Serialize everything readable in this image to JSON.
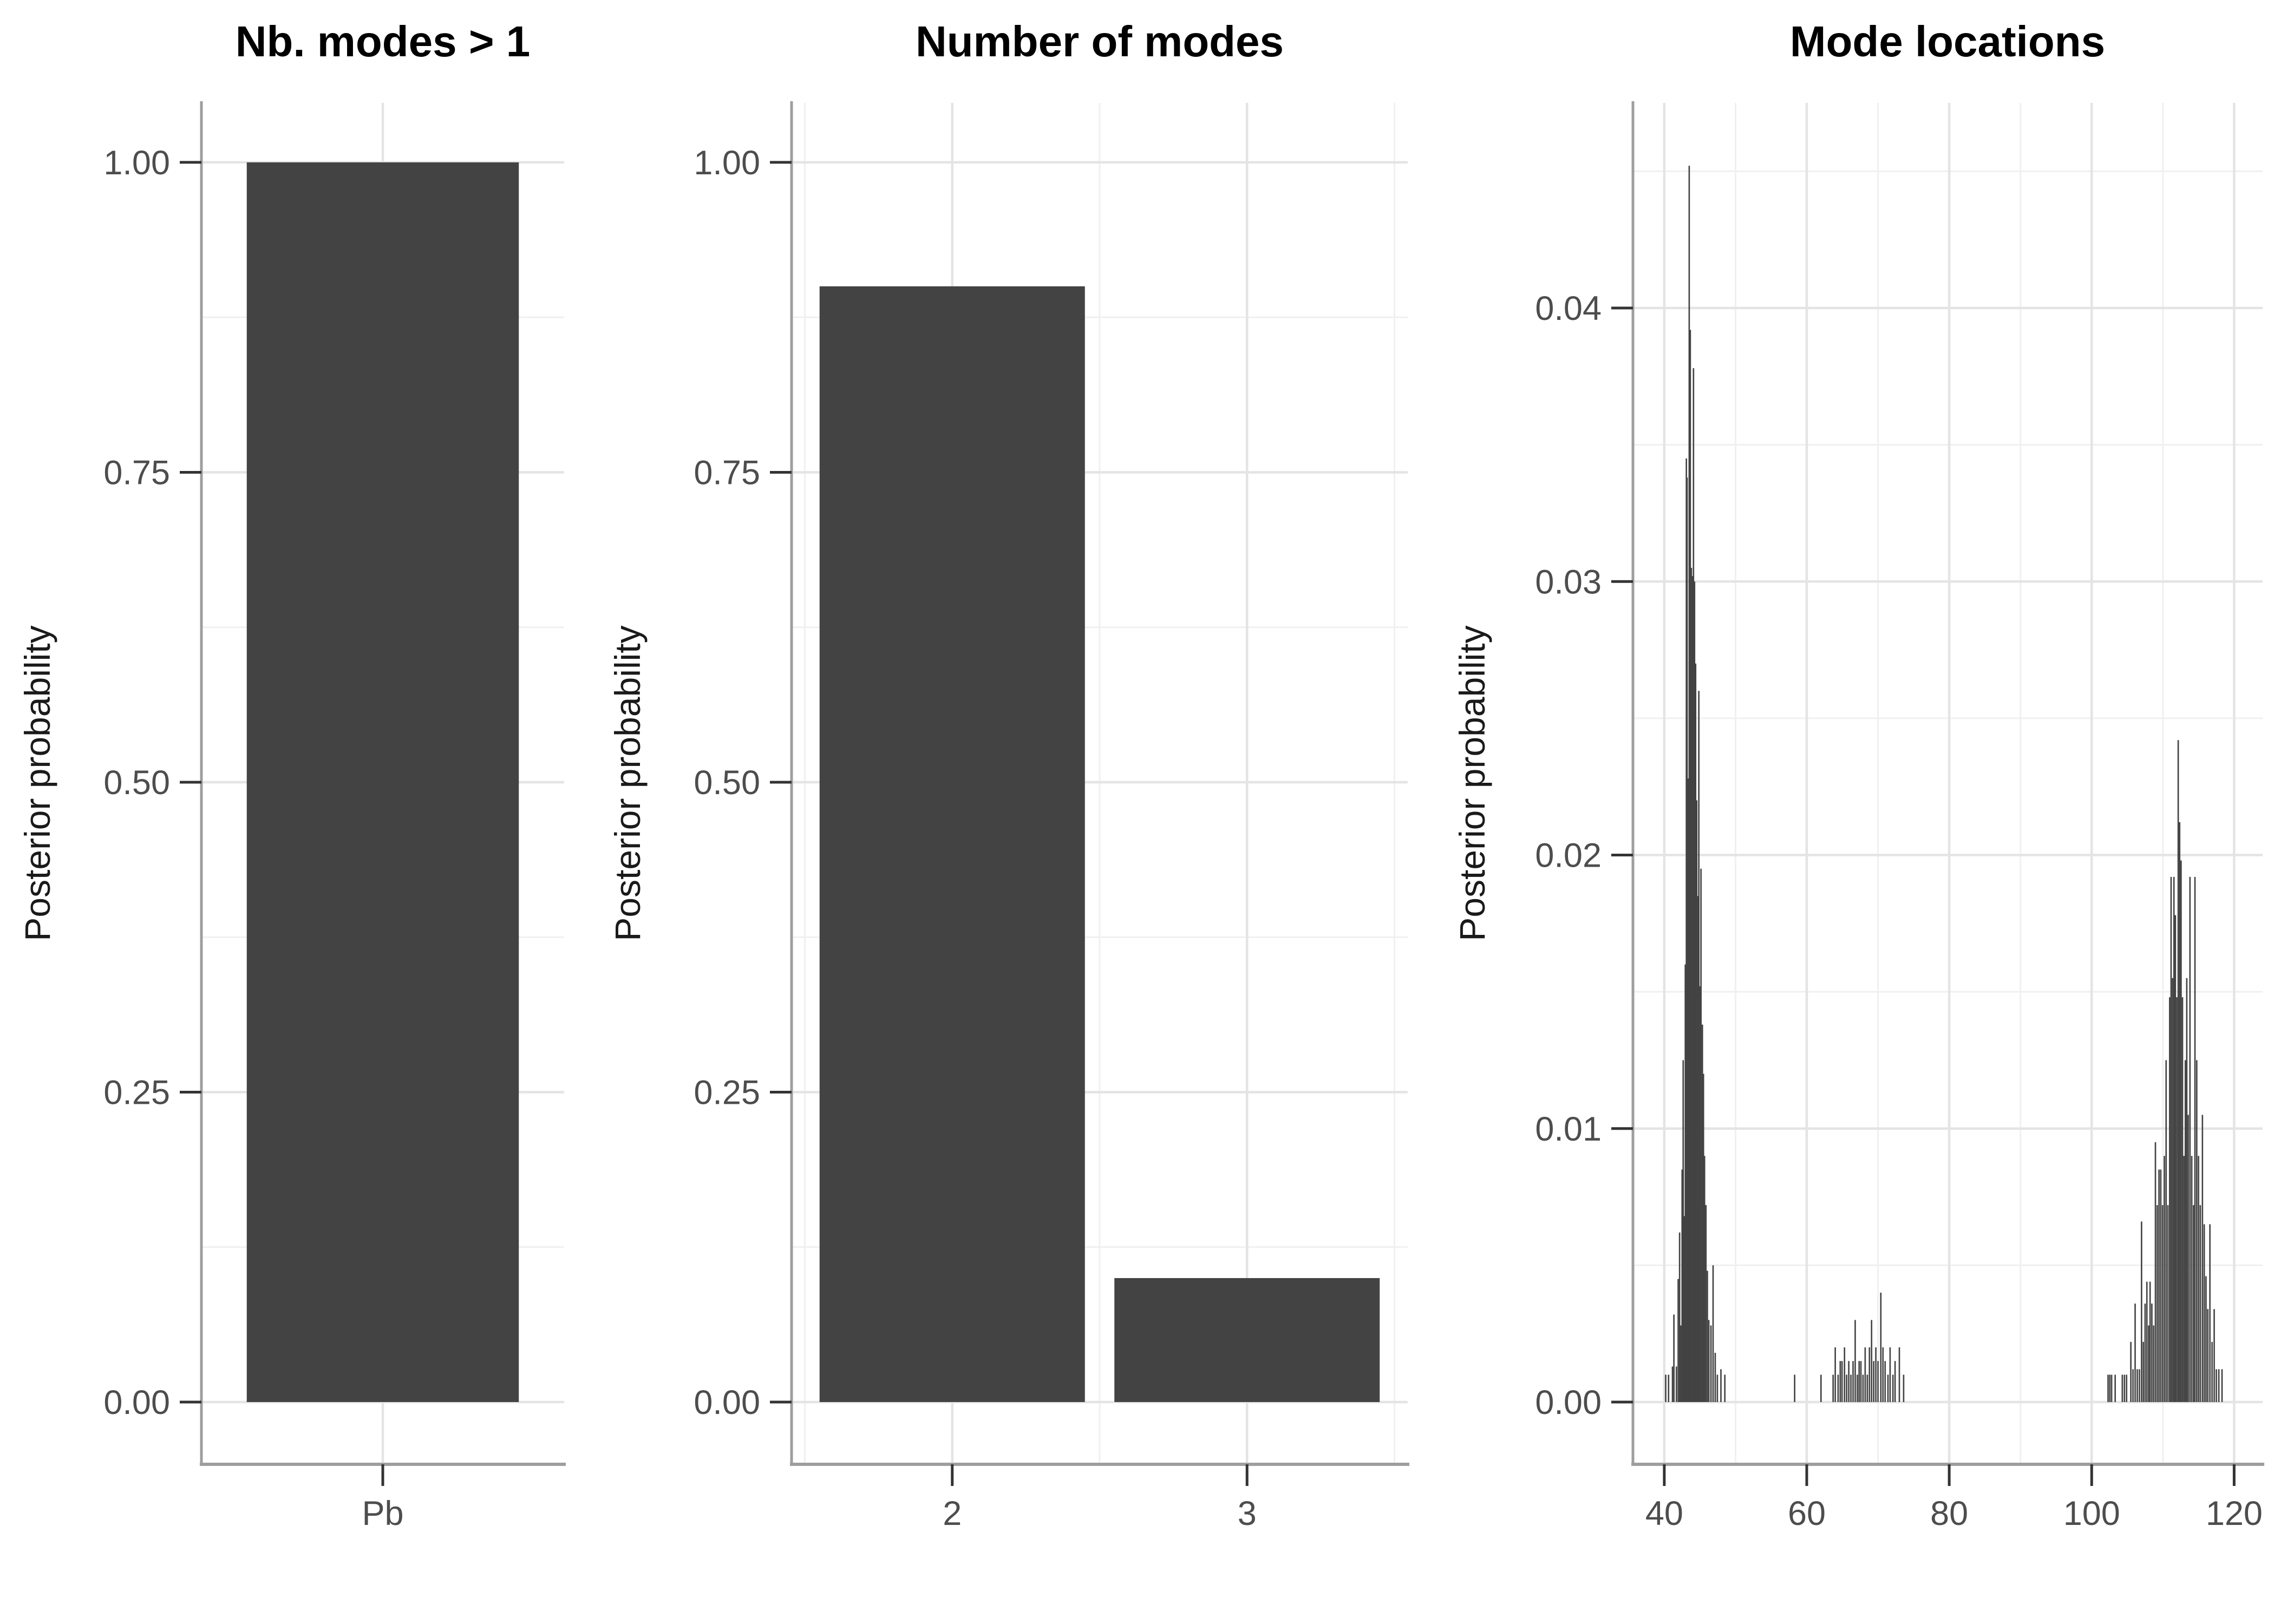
{
  "figure": {
    "background": "#ffffff",
    "panel_background": "#ffffff"
  },
  "colors": {
    "bar_fill": "#434343",
    "grid_major": "#e4e4e4",
    "grid_minor": "#f0f0f0",
    "axis_line": "#9e9e9e",
    "tick_mark": "#333333",
    "tick_label": "#4d4d4d",
    "axis_title": "#1a1a1a",
    "title": "#000000"
  },
  "chart_data": [
    {
      "type": "bar",
      "title": "Nb. modes > 1",
      "ylabel": "Posterior probability",
      "xlabel": "",
      "categories": [
        "Pb"
      ],
      "x": [
        1
      ],
      "values": [
        1.0
      ],
      "bar_halfwidth": 0.45,
      "xlim": [
        0.4,
        1.6
      ],
      "major_x": [
        1
      ],
      "minor_x": [],
      "ylim": [
        0,
        1.048
      ],
      "y_ticks": [
        {
          "v": 0.0,
          "label": "0.00"
        },
        {
          "v": 0.25,
          "label": "0.25"
        },
        {
          "v": 0.5,
          "label": "0.50"
        },
        {
          "v": 0.75,
          "label": "0.75"
        },
        {
          "v": 1.0,
          "label": "1.00"
        }
      ],
      "minor_y": [
        0.125,
        0.375,
        0.625,
        0.875
      ],
      "grid": true,
      "legend": "none"
    },
    {
      "type": "bar",
      "title": "Number of modes",
      "ylabel": "Posterior probability",
      "xlabel": "",
      "categories": [
        "2",
        "3"
      ],
      "x": [
        2,
        3
      ],
      "values": [
        0.9,
        0.1
      ],
      "bar_halfwidth": 0.45,
      "xlim": [
        1.455,
        3.545
      ],
      "major_x": [
        2,
        3
      ],
      "minor_x": [
        1.5,
        2.5,
        3.5
      ],
      "ylim": [
        0,
        1.048
      ],
      "y_ticks": [
        {
          "v": 0.0,
          "label": "0.00"
        },
        {
          "v": 0.25,
          "label": "0.25"
        },
        {
          "v": 0.5,
          "label": "0.50"
        },
        {
          "v": 0.75,
          "label": "0.75"
        },
        {
          "v": 1.0,
          "label": "1.00"
        }
      ],
      "minor_y": [
        0.125,
        0.375,
        0.625,
        0.875
      ],
      "grid": true,
      "legend": "none"
    },
    {
      "type": "bar",
      "subtype": "histogram-spikes",
      "title": "Mode locations",
      "ylabel": "Posterior probability",
      "xlabel": "",
      "xlim": [
        35.6,
        124.0
      ],
      "x_ticks": [
        {
          "v": 40,
          "label": "40"
        },
        {
          "v": 60,
          "label": "60"
        },
        {
          "v": 80,
          "label": "80"
        },
        {
          "v": 100,
          "label": "100"
        },
        {
          "v": 120,
          "label": "120"
        }
      ],
      "major_x": [
        40,
        60,
        80,
        100,
        120
      ],
      "minor_x": [
        50,
        70,
        90,
        110
      ],
      "ylim": [
        0,
        0.0475
      ],
      "y_ticks": [
        {
          "v": 0.0,
          "label": "0.00"
        },
        {
          "v": 0.01,
          "label": "0.01"
        },
        {
          "v": 0.02,
          "label": "0.02"
        },
        {
          "v": 0.03,
          "label": "0.03"
        },
        {
          "v": 0.04,
          "label": "0.04"
        }
      ],
      "minor_y": [
        0.005,
        0.015,
        0.025,
        0.035,
        0.045
      ],
      "bar_width_units": 0.2,
      "grid": true,
      "legend": "none",
      "bars": [
        [
          40.2,
          0.001
        ],
        [
          40.6,
          0.001
        ],
        [
          41.15,
          0.0013
        ],
        [
          41.35,
          0.0032
        ],
        [
          41.7,
          0.0013
        ],
        [
          41.95,
          0.0045
        ],
        [
          42.15,
          0.0062
        ],
        [
          42.3,
          0.0028
        ],
        [
          42.5,
          0.0085
        ],
        [
          42.65,
          0.0125
        ],
        [
          42.8,
          0.0068
        ],
        [
          42.95,
          0.016
        ],
        [
          43.1,
          0.0345
        ],
        [
          43.2,
          0.0338
        ],
        [
          43.35,
          0.0228
        ],
        [
          43.5,
          0.0452
        ],
        [
          43.65,
          0.0392
        ],
        [
          43.8,
          0.0305
        ],
        [
          43.95,
          0.0302
        ],
        [
          44.1,
          0.0378
        ],
        [
          44.25,
          0.03
        ],
        [
          44.4,
          0.027
        ],
        [
          44.55,
          0.022
        ],
        [
          44.7,
          0.0185
        ],
        [
          44.85,
          0.026
        ],
        [
          45.0,
          0.0152
        ],
        [
          45.15,
          0.0195
        ],
        [
          45.35,
          0.0138
        ],
        [
          45.5,
          0.012
        ],
        [
          45.65,
          0.009
        ],
        [
          45.85,
          0.0072
        ],
        [
          46.05,
          0.0048
        ],
        [
          46.25,
          0.003
        ],
        [
          46.55,
          0.0028
        ],
        [
          46.85,
          0.005
        ],
        [
          47.15,
          0.0018
        ],
        [
          47.45,
          0.001
        ],
        [
          47.95,
          0.0012
        ],
        [
          48.5,
          0.001
        ],
        [
          58.3,
          0.001
        ],
        [
          62.0,
          0.001
        ],
        [
          63.7,
          0.001
        ],
        [
          64.0,
          0.002
        ],
        [
          64.4,
          0.001
        ],
        [
          64.7,
          0.0015
        ],
        [
          64.95,
          0.0015
        ],
        [
          65.3,
          0.002
        ],
        [
          65.6,
          0.001
        ],
        [
          65.9,
          0.0015
        ],
        [
          66.2,
          0.001
        ],
        [
          66.5,
          0.0015
        ],
        [
          66.8,
          0.003
        ],
        [
          67.1,
          0.001
        ],
        [
          67.35,
          0.0015
        ],
        [
          67.6,
          0.0015
        ],
        [
          67.9,
          0.001
        ],
        [
          68.2,
          0.002
        ],
        [
          68.5,
          0.001
        ],
        [
          68.8,
          0.002
        ],
        [
          69.1,
          0.003
        ],
        [
          69.4,
          0.0015
        ],
        [
          69.7,
          0.002
        ],
        [
          70.0,
          0.0015
        ],
        [
          70.4,
          0.004
        ],
        [
          70.7,
          0.002
        ],
        [
          71.0,
          0.0015
        ],
        [
          71.4,
          0.001
        ],
        [
          71.7,
          0.002
        ],
        [
          72.1,
          0.001
        ],
        [
          72.4,
          0.0015
        ],
        [
          73.0,
          0.002
        ],
        [
          73.6,
          0.001
        ],
        [
          102.3,
          0.001
        ],
        [
          102.55,
          0.001
        ],
        [
          102.8,
          0.001
        ],
        [
          103.3,
          0.001
        ],
        [
          104.3,
          0.001
        ],
        [
          104.6,
          0.001
        ],
        [
          104.9,
          0.001
        ],
        [
          105.5,
          0.0022
        ],
        [
          105.8,
          0.0012
        ],
        [
          106.1,
          0.0036
        ],
        [
          106.4,
          0.0012
        ],
        [
          106.7,
          0.0012
        ],
        [
          107.0,
          0.0066
        ],
        [
          107.25,
          0.0022
        ],
        [
          107.5,
          0.0036
        ],
        [
          107.75,
          0.0044
        ],
        [
          108.0,
          0.0028
        ],
        [
          108.2,
          0.0044
        ],
        [
          108.45,
          0.0036
        ],
        [
          108.7,
          0.0028
        ],
        [
          108.95,
          0.0095
        ],
        [
          109.2,
          0.0072
        ],
        [
          109.45,
          0.0085
        ],
        [
          109.7,
          0.0085
        ],
        [
          109.95,
          0.0072
        ],
        [
          110.2,
          0.009
        ],
        [
          110.45,
          0.0125
        ],
        [
          110.7,
          0.0072
        ],
        [
          110.95,
          0.0148
        ],
        [
          111.15,
          0.0192
        ],
        [
          111.35,
          0.0155
        ],
        [
          111.55,
          0.0192
        ],
        [
          111.75,
          0.0178
        ],
        [
          111.95,
          0.0148
        ],
        [
          112.15,
          0.0242
        ],
        [
          112.35,
          0.0212
        ],
        [
          112.55,
          0.0198
        ],
        [
          112.75,
          0.0148
        ],
        [
          112.95,
          0.009
        ],
        [
          113.15,
          0.0125
        ],
        [
          113.35,
          0.0155
        ],
        [
          113.55,
          0.0105
        ],
        [
          113.8,
          0.0192
        ],
        [
          114.05,
          0.009
        ],
        [
          114.3,
          0.0072
        ],
        [
          114.5,
          0.0192
        ],
        [
          114.75,
          0.0125
        ],
        [
          115.0,
          0.009
        ],
        [
          115.25,
          0.0072
        ],
        [
          115.55,
          0.0105
        ],
        [
          115.8,
          0.0065
        ],
        [
          116.05,
          0.0046
        ],
        [
          116.3,
          0.0034
        ],
        [
          116.6,
          0.0065
        ],
        [
          116.9,
          0.0022
        ],
        [
          117.2,
          0.0034
        ],
        [
          117.5,
          0.0012
        ],
        [
          117.85,
          0.0012
        ],
        [
          118.3,
          0.0012
        ]
      ]
    }
  ]
}
